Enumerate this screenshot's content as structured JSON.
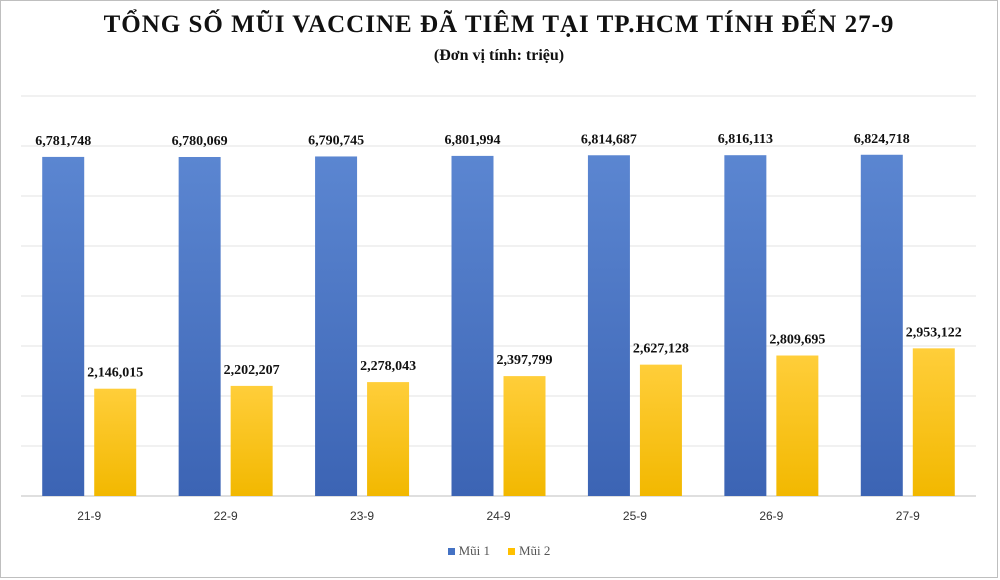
{
  "chart_data": {
    "type": "bar",
    "title": "TỔNG SỐ MŨI VACCINE  ĐÃ TIÊM TẠI TP.HCM TÍNH ĐẾN 27-9",
    "subtitle": "(Đơn vị tính:  triệu)",
    "categories": [
      "21-9",
      "22-9",
      "23-9",
      "24-9",
      "25-9",
      "26-9",
      "27-9"
    ],
    "series": [
      {
        "name": "Mũi 1",
        "color": "#4472C4",
        "values": [
          6781748,
          6780069,
          6790745,
          6801994,
          6814687,
          6816113,
          6824718
        ],
        "labels": [
          "6,781,748",
          "6,780,069",
          "6,790,745",
          "6,801,994",
          "6,814,687",
          "6,816,113",
          "6,824,718"
        ]
      },
      {
        "name": "Mũi 2",
        "color": "#FFC000",
        "values": [
          2146015,
          2202207,
          2278043,
          2397799,
          2627128,
          2809695,
          2953122
        ],
        "labels": [
          "2,146,015",
          "2,202,207",
          "2,278,043",
          "2,397,799",
          "2,627,128",
          "2,809,695",
          "2,953,122"
        ]
      }
    ],
    "ylim": [
      0,
      8000000
    ],
    "grid": true,
    "legend_position": "bottom"
  }
}
